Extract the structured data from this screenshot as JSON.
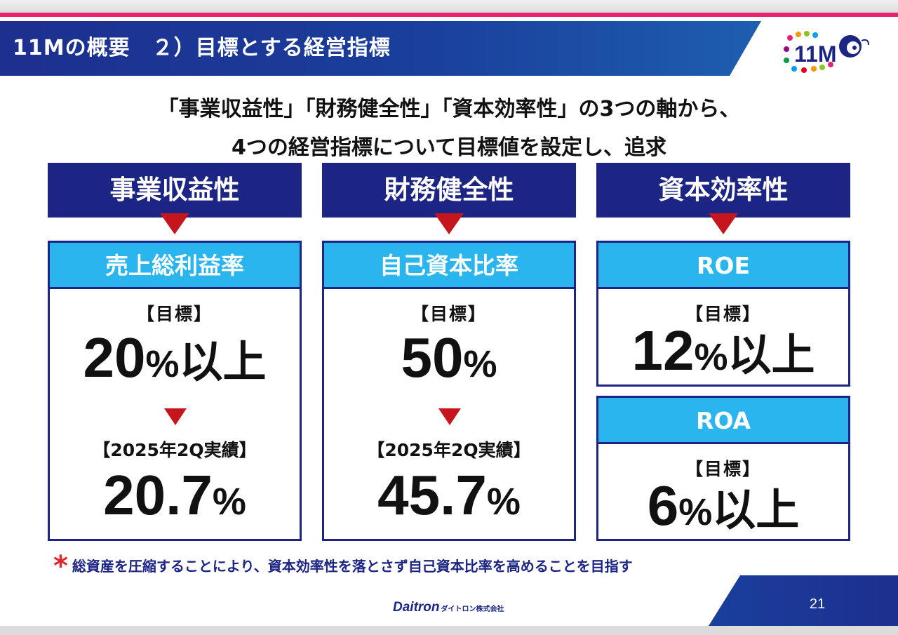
{
  "header": {
    "title": "11Mの概要　２）目標とする経営指標",
    "logo_text": "11M"
  },
  "subtitle": {
    "line1": "「事業収益性」「財務健全性」「資本効率性」の3つの軸から、",
    "line2": "4つの経営指標について目標値を設定し、追求"
  },
  "categories": [
    "事業収益性",
    "財務健全性",
    "資本効率性"
  ],
  "cards": {
    "gross_margin": {
      "title": "売上総利益率",
      "target_label": "【目標】",
      "target_num": "20",
      "target_pct": "%",
      "target_suffix": "以上",
      "result_label": "【2025年2Q実績】",
      "result_num": "20.7",
      "result_pct": "%"
    },
    "equity_ratio": {
      "title": "自己資本比率",
      "target_label": "【目標】",
      "target_num": "50",
      "target_pct": "%",
      "result_label": "【2025年2Q実績】",
      "result_num": "45.7",
      "result_pct": "%"
    },
    "roe": {
      "title": "ROE",
      "target_label": "【目標】",
      "target_num": "12",
      "target_pct": "%",
      "target_suffix": "以上"
    },
    "roa": {
      "title": "ROA",
      "target_label": "【目標】",
      "target_num": "6",
      "target_pct": "%",
      "target_suffix": "以上"
    }
  },
  "note": {
    "mark": "*",
    "text": "総資産を圧縮することにより、資本効率性を落とさず自己資本比率を高めることを目指す"
  },
  "footer": {
    "brand": "Daitron",
    "company_jp": "ダイトロン株式会社",
    "page": "21"
  },
  "colors": {
    "navy": "#1c2584",
    "cyan": "#2bb5ee",
    "red": "#c4161c",
    "pink": "#e6246e"
  }
}
